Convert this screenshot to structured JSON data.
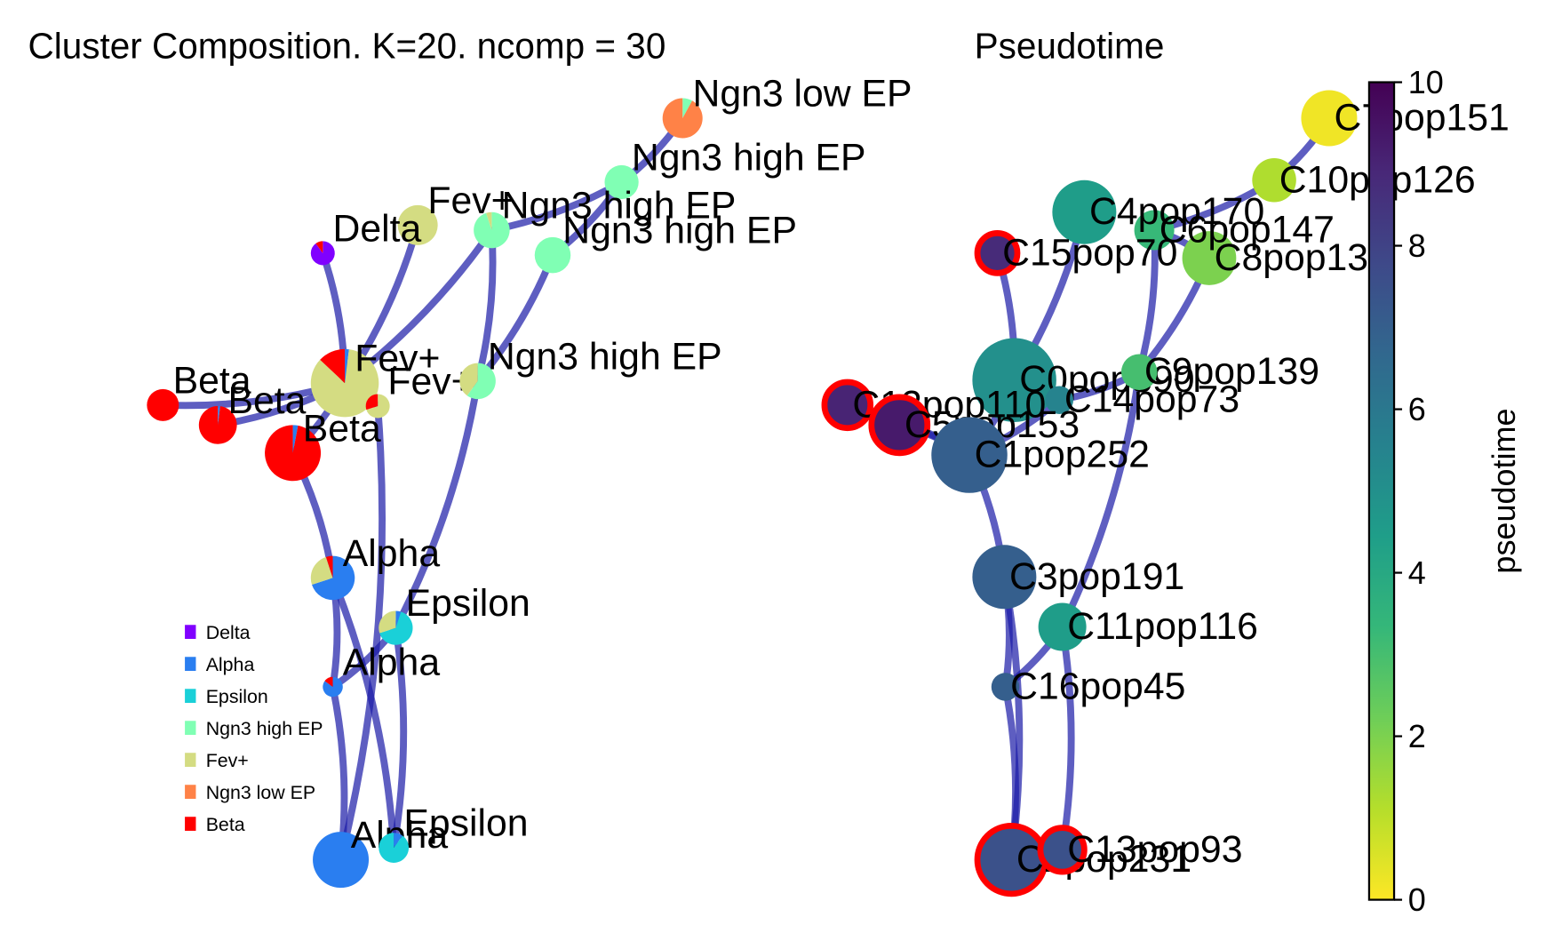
{
  "chart_data": [
    {
      "type": "pie-graph",
      "title": "Cluster Composition. K=20. ncomp = 30",
      "categories": [
        "Delta",
        "Alpha",
        "Epsilon",
        "Ngn3 high EP",
        "Fev+",
        "Ngn3 low EP",
        "Beta"
      ],
      "colors": [
        "#8000ff",
        "#2a7ef0",
        "#1ad0d8",
        "#80ffb4",
        "#d4dc82",
        "#ff8247",
        "#ff0000"
      ],
      "nodes": [
        {
          "label": "Ngn3 low EP",
          "values": [
            0,
            0,
            0,
            8,
            0,
            92,
            0
          ]
        },
        {
          "label": "Ngn3 high EP",
          "values": [
            0,
            0,
            0,
            100,
            0,
            0,
            0
          ]
        },
        {
          "label": "Fev+",
          "values": [
            0,
            0,
            0,
            0,
            100,
            0,
            0
          ]
        },
        {
          "label": "Ngn3 high EP",
          "values": [
            0,
            0,
            0,
            95,
            5,
            0,
            0
          ]
        },
        {
          "label": "Ngn3 high EP",
          "values": [
            0,
            0,
            0,
            100,
            0,
            0,
            0
          ]
        },
        {
          "label": "Delta",
          "values": [
            90,
            0,
            0,
            0,
            0,
            0,
            10
          ]
        },
        {
          "label": "Fev+",
          "values": [
            0,
            2,
            0,
            0,
            85,
            0,
            13
          ]
        },
        {
          "label": "Fev+",
          "values": [
            0,
            0,
            0,
            0,
            70,
            0,
            30
          ]
        },
        {
          "label": "Ngn3 high EP",
          "values": [
            0,
            0,
            0,
            60,
            40,
            0,
            0
          ]
        },
        {
          "label": "Beta",
          "values": [
            0,
            0,
            0,
            0,
            0,
            0,
            100
          ]
        },
        {
          "label": "Beta",
          "values": [
            0,
            2,
            0,
            0,
            0,
            0,
            98
          ]
        },
        {
          "label": "Beta",
          "values": [
            0,
            3,
            0,
            0,
            0,
            0,
            97
          ]
        },
        {
          "label": "Alpha",
          "values": [
            0,
            70,
            0,
            0,
            25,
            0,
            5
          ]
        },
        {
          "label": "Epsilon",
          "values": [
            0,
            5,
            65,
            0,
            30,
            0,
            0
          ]
        },
        {
          "label": "Alpha",
          "values": [
            0,
            85,
            0,
            0,
            0,
            0,
            15
          ]
        },
        {
          "label": "Alpha",
          "values": [
            0,
            100,
            0,
            0,
            0,
            0,
            0
          ]
        },
        {
          "label": "Epsilon",
          "values": [
            0,
            10,
            90,
            0,
            0,
            0,
            0
          ]
        }
      ]
    },
    {
      "type": "graph",
      "title": "Pseudotime",
      "colorbar_label": "pseudotime",
      "ylim": [
        0,
        10
      ],
      "yticks": [
        0,
        2,
        4,
        6,
        8,
        10
      ],
      "colormap": "viridis_r",
      "nodes": [
        {
          "label": "C7pop151",
          "value": 0.2
        },
        {
          "label": "C10pop126",
          "value": 1.2
        },
        {
          "label": "C8pop134",
          "value": 2.0
        },
        {
          "label": "C6pop147",
          "value": 3.3
        },
        {
          "label": "C4pop170",
          "value": 4.5
        },
        {
          "label": "C15pop70",
          "value": 8.8,
          "terminal": true
        },
        {
          "label": "C0pop390",
          "value": 5.0
        },
        {
          "label": "C9pop139",
          "value": 3.0
        },
        {
          "label": "C14pop73",
          "value": 5.5
        },
        {
          "label": "C12pop110",
          "value": 9.0,
          "terminal": true
        },
        {
          "label": "C5pop153",
          "value": 9.3,
          "terminal": true
        },
        {
          "label": "C1pop252",
          "value": 7.0
        },
        {
          "label": "C3pop191",
          "value": 7.0
        },
        {
          "label": "C11pop116",
          "value": 4.5
        },
        {
          "label": "C16pop45",
          "value": 7.0
        },
        {
          "label": "C2pop231",
          "value": 7.5,
          "terminal": true
        },
        {
          "label": "C13pop93",
          "value": 7.5,
          "terminal": true
        }
      ]
    }
  ]
}
